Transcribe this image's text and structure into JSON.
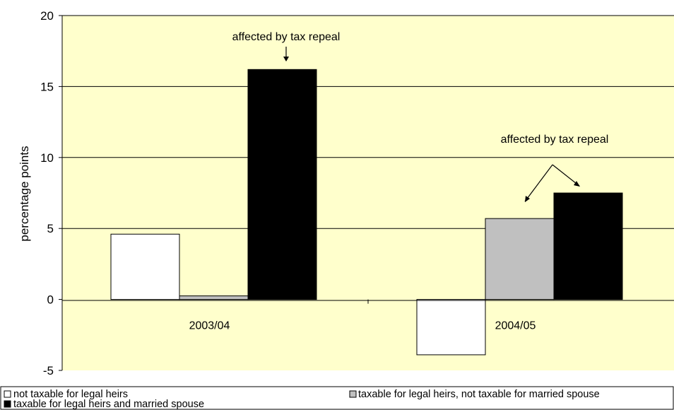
{
  "chart_data": {
    "type": "bar",
    "categories": [
      "2003/04",
      "2004/05"
    ],
    "series": [
      {
        "name": "not taxable for legal heirs",
        "values": [
          4.6,
          -3.9
        ],
        "color": "#ffffff"
      },
      {
        "name": "taxable for legal heirs, not taxable for married spouse",
        "values": [
          0.25,
          5.7
        ],
        "color": "#c0c0c0"
      },
      {
        "name": "taxable for legal heirs and married spouse",
        "values": [
          16.2,
          7.5
        ],
        "color": "#000000"
      }
    ],
    "ylabel": "percentage points",
    "ylim": [
      -5,
      20
    ],
    "yticks": [
      "-5",
      "0",
      "5",
      "10",
      "15",
      "20"
    ],
    "plot_background": "#ffffcc",
    "gridlines": true,
    "legend_position": "bottom",
    "annotations": [
      {
        "text": "affected by tax repeal"
      },
      {
        "text": "affected by tax repeal"
      }
    ]
  }
}
